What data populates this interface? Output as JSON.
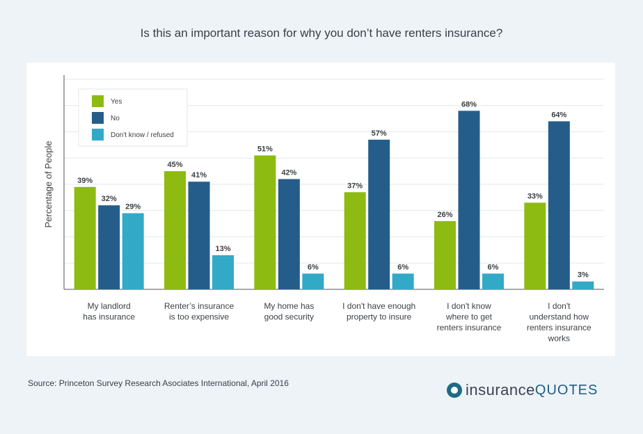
{
  "chart_data": {
    "type": "bar",
    "title": "Is this an important reason for why you don’t have renters insurance?",
    "ylabel": "Percentage of People",
    "xlabel": "",
    "ylim": [
      0,
      80
    ],
    "grid": true,
    "legend_position": "top-left",
    "categories": [
      [
        "My landlord",
        "has insurance"
      ],
      [
        "Renter’s insurance",
        "is too expensive"
      ],
      [
        "My home has",
        "good security"
      ],
      [
        "I don't have enough",
        "property to insure"
      ],
      [
        "I don't know",
        "where to get",
        "renters insurance"
      ],
      [
        "I don't",
        "understand how",
        "renters insurance",
        "works"
      ]
    ],
    "series": [
      {
        "name": "Yes",
        "color": "#8dbb12",
        "values": [
          39,
          45,
          51,
          37,
          26,
          33
        ]
      },
      {
        "name": "No",
        "color": "#255d8a",
        "values": [
          32,
          41,
          42,
          57,
          68,
          64
        ]
      },
      {
        "name": "Don't know / refused",
        "color": "#33a9c8",
        "values": [
          29,
          13,
          6,
          6,
          6,
          3
        ]
      }
    ],
    "value_suffix": "%"
  },
  "footer": {
    "source": "Source: Princeton Survey Research Asociates International, April 2016",
    "logo_word1": "insurance",
    "logo_word2": "QUOTES"
  }
}
